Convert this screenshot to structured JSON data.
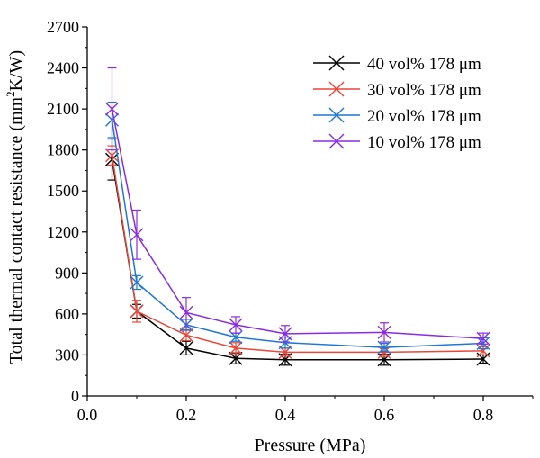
{
  "chart_data": {
    "type": "line",
    "xlabel": "Pressure (MPa)",
    "ylabel_main": "Total thermal contact resistance (mm",
    "ylabel_sup": "2",
    "ylabel_tail": "K/W)",
    "xlim": [
      0.0,
      0.9
    ],
    "ylim": [
      0,
      2700
    ],
    "xticks": [
      0.0,
      0.2,
      0.4,
      0.6,
      0.8
    ],
    "xtick_labels": [
      "0.0",
      "0.2",
      "0.4",
      "0.6",
      "0.8"
    ],
    "yticks": [
      0,
      300,
      600,
      900,
      1200,
      1500,
      1800,
      2100,
      2400,
      2700
    ],
    "ytick_labels": [
      "0",
      "300",
      "600",
      "900",
      "1200",
      "1500",
      "1800",
      "2100",
      "2400",
      "2700"
    ],
    "legend_position": "top-right",
    "x": [
      0.05,
      0.1,
      0.2,
      0.3,
      0.4,
      0.6,
      0.8
    ],
    "series": [
      {
        "name": "40 vol% 178 μm",
        "color": "#000000",
        "values": [
          1730,
          620,
          350,
          275,
          265,
          265,
          270
        ],
        "errors": [
          150,
          50,
          50,
          40,
          40,
          40,
          30
        ]
      },
      {
        "name": "30 vol% 178 μm",
        "color": "#e8473a",
        "values": [
          1760,
          620,
          445,
          350,
          320,
          320,
          330
        ],
        "errors": [
          70,
          80,
          40,
          40,
          30,
          30,
          30
        ]
      },
      {
        "name": "20 vol% 178 μm",
        "color": "#1f77d4",
        "values": [
          2020,
          830,
          520,
          430,
          390,
          355,
          385
        ],
        "errors": [
          130,
          50,
          40,
          30,
          40,
          30,
          40
        ]
      },
      {
        "name": "10 vol% 178 μm",
        "color": "#8a2be2",
        "values": [
          2100,
          1180,
          610,
          520,
          455,
          465,
          420
        ],
        "errors": [
          300,
          180,
          110,
          60,
          60,
          70,
          40
        ]
      }
    ]
  }
}
